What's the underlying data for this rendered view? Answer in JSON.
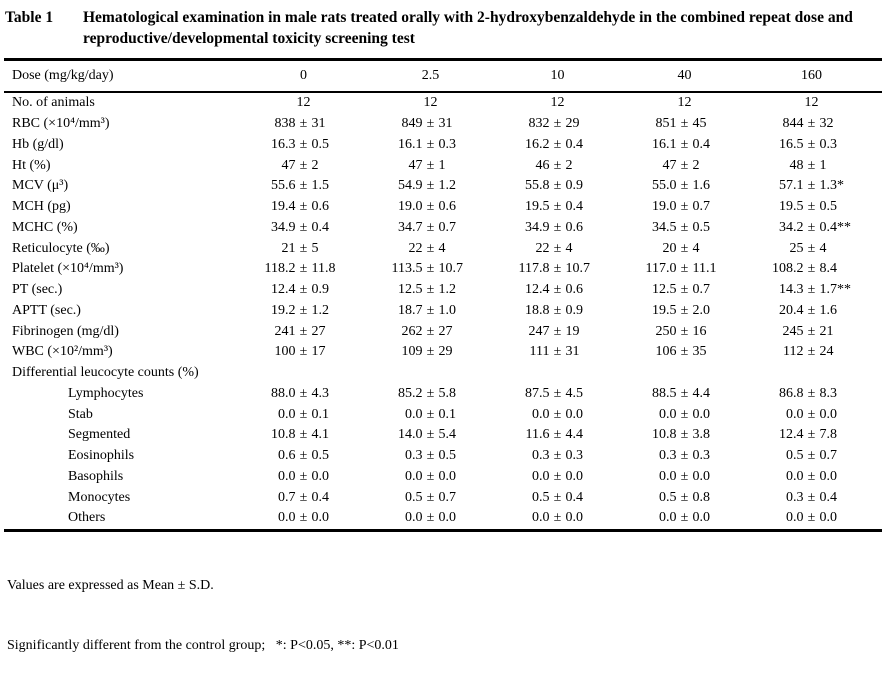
{
  "pm_sign": "±",
  "title": {
    "label": "Table 1",
    "caption": "Hematological examination in male rats treated orally with 2-hydroxybenzaldehyde in the combined repeat dose and reproductive/developmental toxicity screening test"
  },
  "table": {
    "header": {
      "label": "Dose (mg/kg/day)",
      "doses": [
        "0",
        "2.5",
        "10",
        "40",
        "160"
      ]
    },
    "rows": [
      {
        "label": "No. of animals",
        "values": [
          "12",
          "12",
          "12",
          "12",
          "12"
        ]
      },
      {
        "label": "RBC (×10⁴/mm³)",
        "values": [
          {
            "m": "838",
            "s": "31"
          },
          {
            "m": "849",
            "s": "31"
          },
          {
            "m": "832",
            "s": "29"
          },
          {
            "m": "851",
            "s": "45"
          },
          {
            "m": "844",
            "s": "32"
          }
        ]
      },
      {
        "label": "Hb (g/dl)",
        "values": [
          {
            "m": "16.3",
            "s": "0.5"
          },
          {
            "m": "16.1",
            "s": "0.3"
          },
          {
            "m": "16.2",
            "s": "0.4"
          },
          {
            "m": "16.1",
            "s": "0.4"
          },
          {
            "m": "16.5",
            "s": "0.3"
          }
        ]
      },
      {
        "label": "Ht (%)",
        "values": [
          {
            "m": "47",
            "s": "2"
          },
          {
            "m": "47",
            "s": "1"
          },
          {
            "m": "46",
            "s": "2"
          },
          {
            "m": "47",
            "s": "2"
          },
          {
            "m": "48",
            "s": "1"
          }
        ]
      },
      {
        "label": "MCV (μ³)",
        "values": [
          {
            "m": "55.6",
            "s": "1.5"
          },
          {
            "m": "54.9",
            "s": "1.2"
          },
          {
            "m": "55.8",
            "s": "0.9"
          },
          {
            "m": "55.0",
            "s": "1.6"
          },
          {
            "m": "57.1",
            "s": "1.3",
            "k": "*"
          }
        ]
      },
      {
        "label": "MCH (pg)",
        "values": [
          {
            "m": "19.4",
            "s": "0.6"
          },
          {
            "m": "19.0",
            "s": "0.6"
          },
          {
            "m": "19.5",
            "s": "0.4"
          },
          {
            "m": "19.0",
            "s": "0.7"
          },
          {
            "m": "19.5",
            "s": "0.5"
          }
        ]
      },
      {
        "label": "MCHC (%)",
        "values": [
          {
            "m": "34.9",
            "s": "0.4"
          },
          {
            "m": "34.7",
            "s": "0.7"
          },
          {
            "m": "34.9",
            "s": "0.6"
          },
          {
            "m": "34.5",
            "s": "0.5"
          },
          {
            "m": "34.2",
            "s": "0.4",
            "k": "**"
          }
        ]
      },
      {
        "label": "Reticulocyte (‰)",
        "values": [
          {
            "m": "21",
            "s": "5"
          },
          {
            "m": "22",
            "s": "4"
          },
          {
            "m": "22",
            "s": "4"
          },
          {
            "m": "20",
            "s": "4"
          },
          {
            "m": "25",
            "s": "4"
          }
        ]
      },
      {
        "label": "Platelet (×10⁴/mm³)",
        "values": [
          {
            "m": "118.2",
            "s": "11.8"
          },
          {
            "m": "113.5",
            "s": "10.7"
          },
          {
            "m": "117.8",
            "s": "10.7"
          },
          {
            "m": "117.0",
            "s": "11.1"
          },
          {
            "m": "108.2",
            "s": "8.4"
          }
        ]
      },
      {
        "label": "PT (sec.)",
        "values": [
          {
            "m": "12.4",
            "s": "0.9"
          },
          {
            "m": "12.5",
            "s": "1.2"
          },
          {
            "m": "12.4",
            "s": "0.6"
          },
          {
            "m": "12.5",
            "s": "0.7"
          },
          {
            "m": "14.3",
            "s": "1.7",
            "k": "**"
          }
        ]
      },
      {
        "label": "APTT (sec.)",
        "values": [
          {
            "m": "19.2",
            "s": "1.2"
          },
          {
            "m": "18.7",
            "s": "1.0"
          },
          {
            "m": "18.8",
            "s": "0.9"
          },
          {
            "m": "19.5",
            "s": "2.0"
          },
          {
            "m": "20.4",
            "s": "1.6"
          }
        ]
      },
      {
        "label": "Fibrinogen (mg/dl)",
        "values": [
          {
            "m": "241",
            "s": "27"
          },
          {
            "m": "262",
            "s": "27"
          },
          {
            "m": "247",
            "s": "19"
          },
          {
            "m": "250",
            "s": "16"
          },
          {
            "m": "245",
            "s": "21"
          }
        ]
      },
      {
        "label": "WBC (×10²/mm³)",
        "values": [
          {
            "m": "100",
            "s": "17"
          },
          {
            "m": "109",
            "s": "29"
          },
          {
            "m": "111",
            "s": "31"
          },
          {
            "m": "106",
            "s": "35"
          },
          {
            "m": "112",
            "s": "24"
          }
        ]
      },
      {
        "label": "Differential leucocyte counts (%)",
        "section": true,
        "values": []
      },
      {
        "label": "Lymphocytes",
        "indent": true,
        "values": [
          {
            "m": "88.0",
            "s": "4.3"
          },
          {
            "m": "85.2",
            "s": "5.8"
          },
          {
            "m": "87.5",
            "s": "4.5"
          },
          {
            "m": "88.5",
            "s": "4.4"
          },
          {
            "m": "86.8",
            "s": "8.3"
          }
        ]
      },
      {
        "label": "Stab",
        "indent": true,
        "values": [
          {
            "m": "0.0",
            "s": "0.1"
          },
          {
            "m": "0.0",
            "s": "0.1"
          },
          {
            "m": "0.0",
            "s": "0.0"
          },
          {
            "m": "0.0",
            "s": "0.0"
          },
          {
            "m": "0.0",
            "s": "0.0"
          }
        ]
      },
      {
        "label": "Segmented",
        "indent": true,
        "values": [
          {
            "m": "10.8",
            "s": "4.1"
          },
          {
            "m": "14.0",
            "s": "5.4"
          },
          {
            "m": "11.6",
            "s": "4.4"
          },
          {
            "m": "10.8",
            "s": "3.8"
          },
          {
            "m": "12.4",
            "s": "7.8"
          }
        ]
      },
      {
        "label": "Eosinophils",
        "indent": true,
        "values": [
          {
            "m": "0.6",
            "s": "0.5"
          },
          {
            "m": "0.3",
            "s": "0.5"
          },
          {
            "m": "0.3",
            "s": "0.3"
          },
          {
            "m": "0.3",
            "s": "0.3"
          },
          {
            "m": "0.5",
            "s": "0.7"
          }
        ]
      },
      {
        "label": "Basophils",
        "indent": true,
        "values": [
          {
            "m": "0.0",
            "s": "0.0"
          },
          {
            "m": "0.0",
            "s": "0.0"
          },
          {
            "m": "0.0",
            "s": "0.0"
          },
          {
            "m": "0.0",
            "s": "0.0"
          },
          {
            "m": "0.0",
            "s": "0.0"
          }
        ]
      },
      {
        "label": "Monocytes",
        "indent": true,
        "values": [
          {
            "m": "0.7",
            "s": "0.4"
          },
          {
            "m": "0.5",
            "s": "0.7"
          },
          {
            "m": "0.5",
            "s": "0.4"
          },
          {
            "m": "0.5",
            "s": "0.8"
          },
          {
            "m": "0.3",
            "s": "0.4"
          }
        ]
      },
      {
        "label": "Others",
        "indent": true,
        "values": [
          {
            "m": "0.0",
            "s": "0.0"
          },
          {
            "m": "0.0",
            "s": "0.0"
          },
          {
            "m": "0.0",
            "s": "0.0"
          },
          {
            "m": "0.0",
            "s": "0.0"
          },
          {
            "m": "0.0",
            "s": "0.0"
          }
        ]
      }
    ]
  },
  "footnotes": [
    "Values are expressed as Mean ± S.D.",
    "Significantly different from the control group;   *: P<0.05, **: P<0.01"
  ]
}
